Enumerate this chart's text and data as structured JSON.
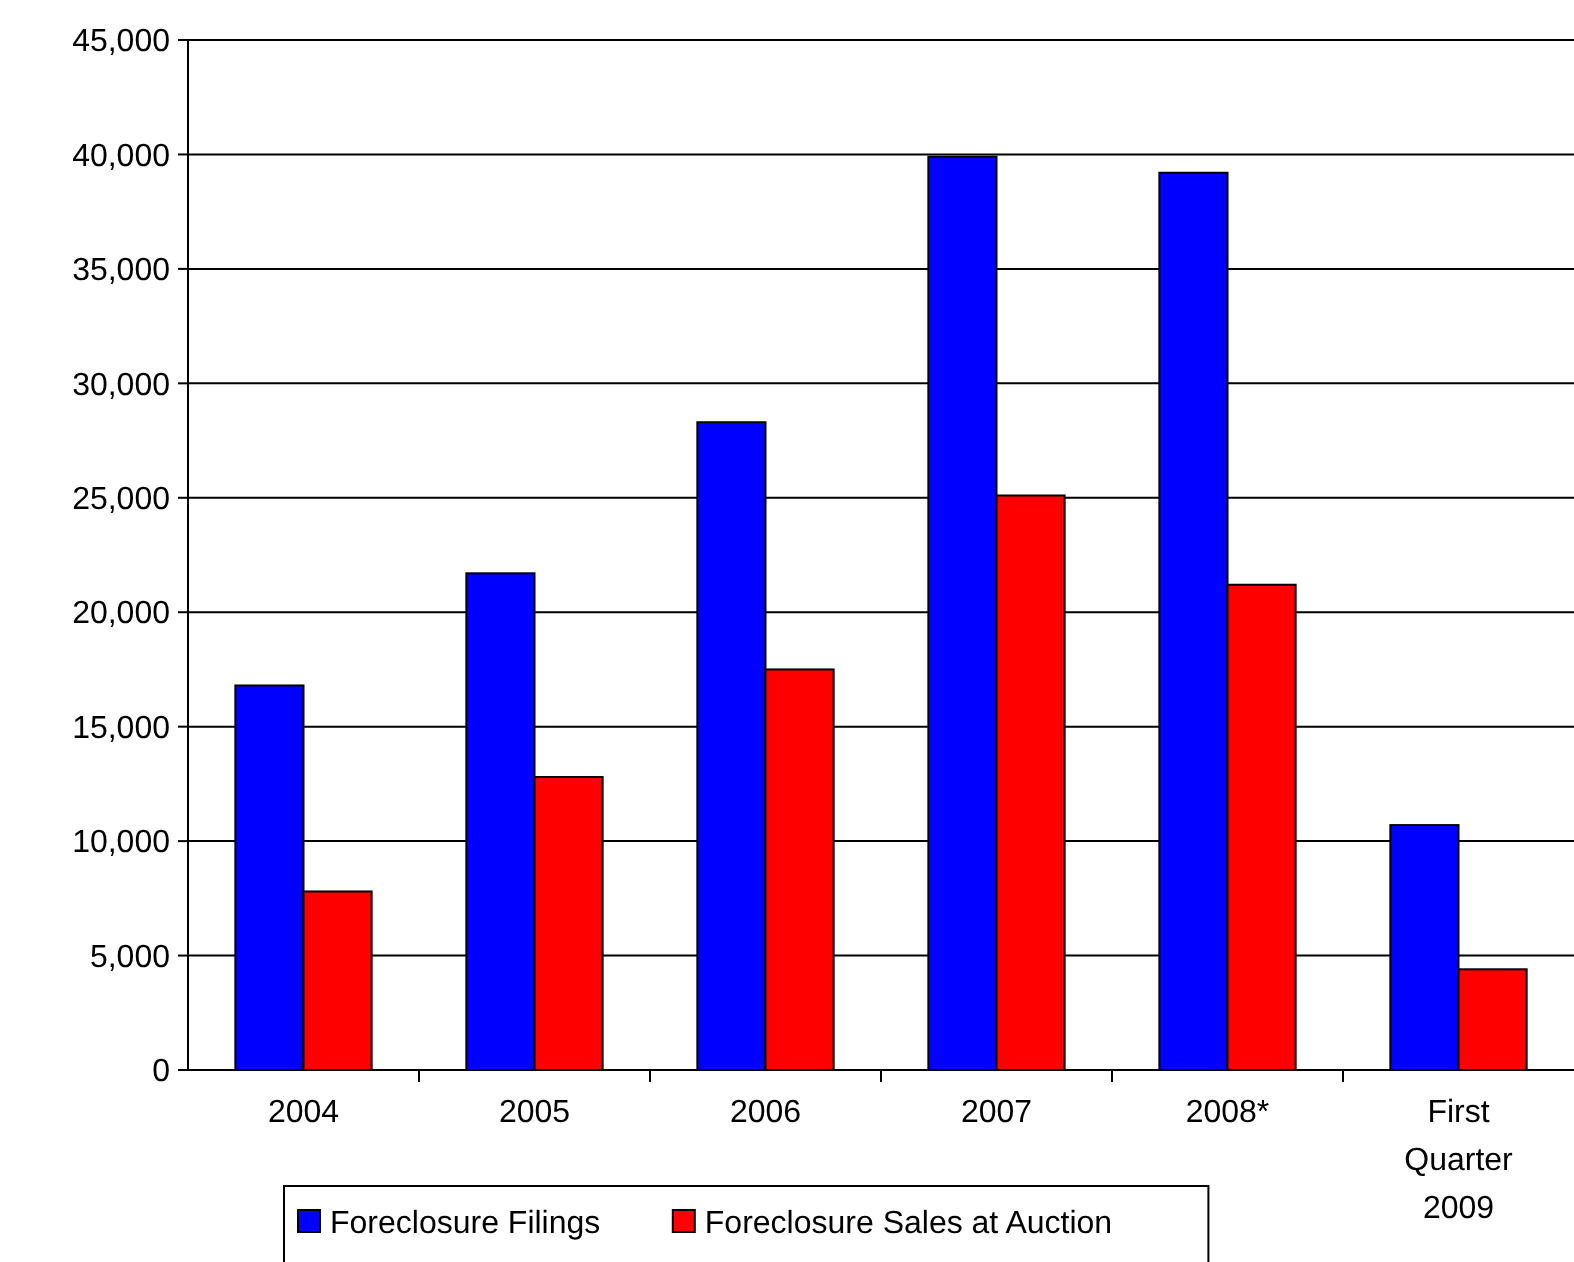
{
  "chart_data": {
    "type": "bar",
    "categories": [
      "2004",
      "2005",
      "2006",
      "2007",
      "2008*",
      "First Quarter 2009"
    ],
    "series": [
      {
        "name": "Foreclosure Filings",
        "color": "#0000ff",
        "values": [
          16800,
          21700,
          28300,
          39900,
          39200,
          10700
        ]
      },
      {
        "name": "Foreclosure Sales at Auction",
        "color": "#ff0000",
        "values": [
          7800,
          12800,
          17500,
          25100,
          21200,
          4400
        ]
      }
    ],
    "ylim": [
      0,
      45000
    ],
    "yticks": [
      {
        "value": 0,
        "label": "0"
      },
      {
        "value": 5000,
        "label": "5,000"
      },
      {
        "value": 10000,
        "label": "10,000"
      },
      {
        "value": 15000,
        "label": "15,000"
      },
      {
        "value": 20000,
        "label": "20,000"
      },
      {
        "value": 25000,
        "label": "25,000"
      },
      {
        "value": 30000,
        "label": "30,000"
      },
      {
        "value": 35000,
        "label": "35,000"
      },
      {
        "value": 40000,
        "label": "40,000"
      },
      {
        "value": 45000,
        "label": "45,000"
      }
    ],
    "grid": "y",
    "legend": "bottom"
  }
}
